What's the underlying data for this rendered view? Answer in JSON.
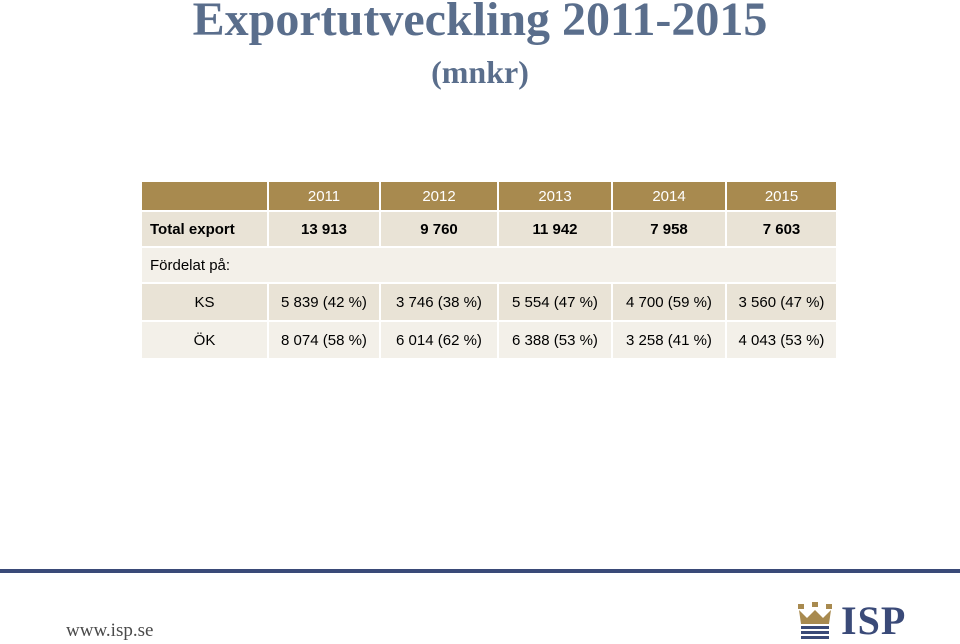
{
  "header": {
    "title": "Exportutveckling 2011-2015",
    "subtitle": "(mnkr)"
  },
  "table": {
    "years": [
      "2011",
      "2012",
      "2013",
      "2014",
      "2015"
    ],
    "total_export": {
      "label": "Total export",
      "values": [
        "13 913",
        "9 760",
        "11 942",
        "7 958",
        "7 603"
      ]
    },
    "distribution_label": "Fördelat på:",
    "ks": {
      "label": "KS",
      "values": [
        "5 839 (42 %)",
        "3 746 (38 %)",
        "5 554 (47 %)",
        "4 700 (59 %)",
        "3 560 (47 %)"
      ]
    },
    "ok": {
      "label": "ÖK",
      "values": [
        "8 074 (58 %)",
        "6 014 (62 %)",
        "6 388 (53 %)",
        "3 258 (41 %)",
        "4 043 (53 %)"
      ]
    }
  },
  "footer": {
    "url": "www.isp.se",
    "logo_text": "ISP",
    "logo_icon": "crown-icon"
  },
  "colors": {
    "title": "#5a6e8c",
    "header_bg": "#a88a4f",
    "row_dark": "#e9e3d6",
    "row_light": "#f3f0e9",
    "footer_line": "#3a4a78"
  }
}
